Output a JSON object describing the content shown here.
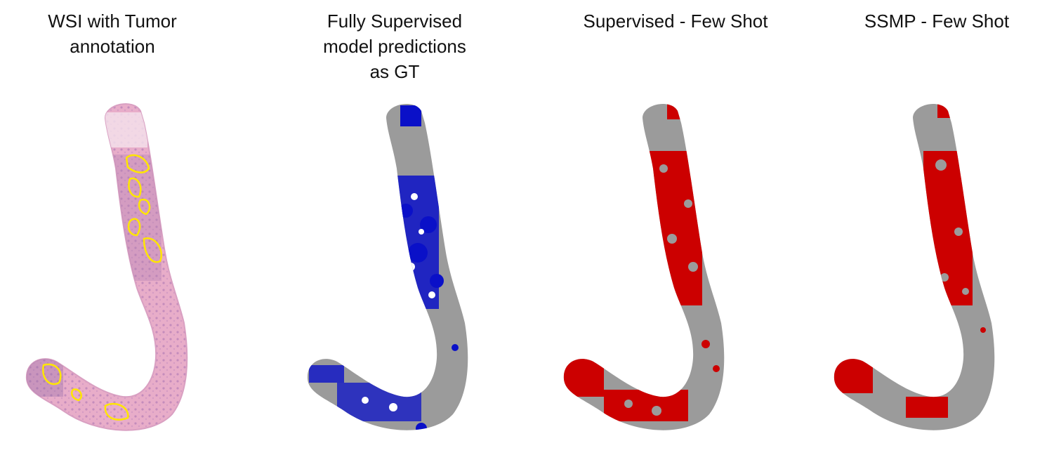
{
  "panels": [
    {
      "title": "WSI with Tumor\nannotation"
    },
    {
      "title": "Fully Supervised\nmodel predictions\nas GT"
    },
    {
      "title": "Supervised - Few Shot"
    },
    {
      "title": "SSMP - Few Shot"
    }
  ],
  "colors": {
    "tissue_he": "#e6a8c9",
    "tissue_dark": "#b582b4",
    "annotation": "#ffe600",
    "background_mask": "#999999",
    "gt_prediction": "#0a10c8",
    "few_shot_prediction": "#cc0000"
  }
}
